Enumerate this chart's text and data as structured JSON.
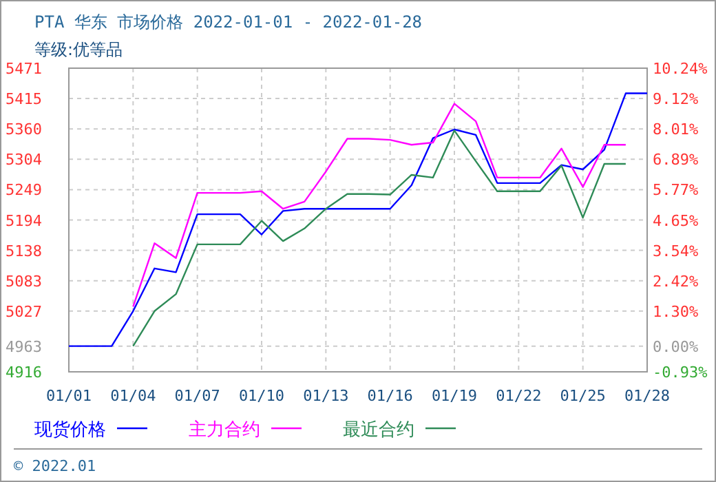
{
  "chart_data": {
    "type": "line",
    "title": "PTA 华东 市场价格 2022-01-01 - 2022-01-28",
    "subtitle": "等级:优等品",
    "annotations": [
      "© 2022.01"
    ],
    "x": [
      "2022-01-01",
      "2022-01-02",
      "2022-01-03",
      "2022-01-04",
      "2022-01-05",
      "2022-01-06",
      "2022-01-07",
      "2022-01-08",
      "2022-01-09",
      "2022-01-10",
      "2022-01-11",
      "2022-01-12",
      "2022-01-13",
      "2022-01-14",
      "2022-01-15",
      "2022-01-16",
      "2022-01-17",
      "2022-01-18",
      "2022-01-19",
      "2022-01-20",
      "2022-01-21",
      "2022-01-22",
      "2022-01-23",
      "2022-01-24",
      "2022-01-25",
      "2022-01-26",
      "2022-01-27",
      "2022-01-28"
    ],
    "series": [
      {
        "name": "现货价格",
        "color": "#0000ff",
        "values": [
          4963,
          4963,
          4963,
          5027,
          5105,
          5098,
          5204,
          5204,
          5204,
          5167,
          5210,
          5214,
          5214,
          5214,
          5214,
          5214,
          5257,
          5343,
          5359,
          5349,
          5261,
          5261,
          5261,
          5294,
          5286,
          5322,
          5425,
          5425
        ]
      },
      {
        "name": "主力合约",
        "color": "#ff00ff",
        "values": [
          null,
          null,
          null,
          5035,
          5151,
          5124,
          5243,
          5243,
          5243,
          5246,
          5214,
          5227,
          5282,
          5342,
          5342,
          5340,
          5331,
          5335,
          5406,
          5374,
          5271,
          5271,
          5271,
          5324,
          5254,
          5331,
          5331,
          null
        ]
      },
      {
        "name": "最近合约",
        "color": "#2e8b57",
        "values": [
          null,
          null,
          null,
          4963,
          5027,
          5058,
          5149,
          5149,
          5149,
          5192,
          5155,
          5178,
          5214,
          5241,
          5241,
          5240,
          5276,
          5271,
          5357,
          5301,
          5246,
          5246,
          5246,
          5293,
          5198,
          5296,
          5296,
          null
        ]
      }
    ],
    "xlim": [
      "2022-01-01",
      "2022-01-28"
    ],
    "xticks": [
      {
        "value": "2022-01-01",
        "label": "01/01"
      },
      {
        "value": "2022-01-04",
        "label": "01/04"
      },
      {
        "value": "2022-01-07",
        "label": "01/07"
      },
      {
        "value": "2022-01-10",
        "label": "01/10"
      },
      {
        "value": "2022-01-13",
        "label": "01/13"
      },
      {
        "value": "2022-01-16",
        "label": "01/16"
      },
      {
        "value": "2022-01-19",
        "label": "01/19"
      },
      {
        "value": "2022-01-22",
        "label": "01/22"
      },
      {
        "value": "2022-01-25",
        "label": "01/25"
      },
      {
        "value": "2022-01-28",
        "label": "01/28"
      }
    ],
    "ylim": [
      4916,
      5471
    ],
    "yticks": [
      4916,
      4963,
      5027,
      {
        "value": 5082.5,
        "label": "5083"
      },
      5138,
      {
        "value": 5193.5,
        "label": "5194"
      },
      5249,
      {
        "value": 5304.5,
        "label": "5304"
      },
      5360,
      {
        "value": 5415.5,
        "label": "5415"
      },
      5471
    ],
    "y2lim": [
      -0.93,
      10.24
    ],
    "y2ticks": [
      {
        "value": -0.93,
        "label": "-0.93%"
      },
      {
        "value": 0,
        "label": "0.00%"
      },
      {
        "value": 1.304,
        "label": "1.30%"
      },
      {
        "value": 2.421,
        "label": "2.42%"
      },
      {
        "value": 3.538,
        "label": "3.54%"
      },
      {
        "value": 4.655,
        "label": "4.65%"
      },
      {
        "value": 5.772,
        "label": "5.77%"
      },
      {
        "value": 6.889,
        "label": "6.89%"
      },
      {
        "value": 8.006,
        "label": "8.01%"
      },
      {
        "value": 9.123,
        "label": "9.12%"
      },
      {
        "value": 10.24,
        "label": "10.24%"
      }
    ],
    "grid": true,
    "legend": "bottom"
  }
}
